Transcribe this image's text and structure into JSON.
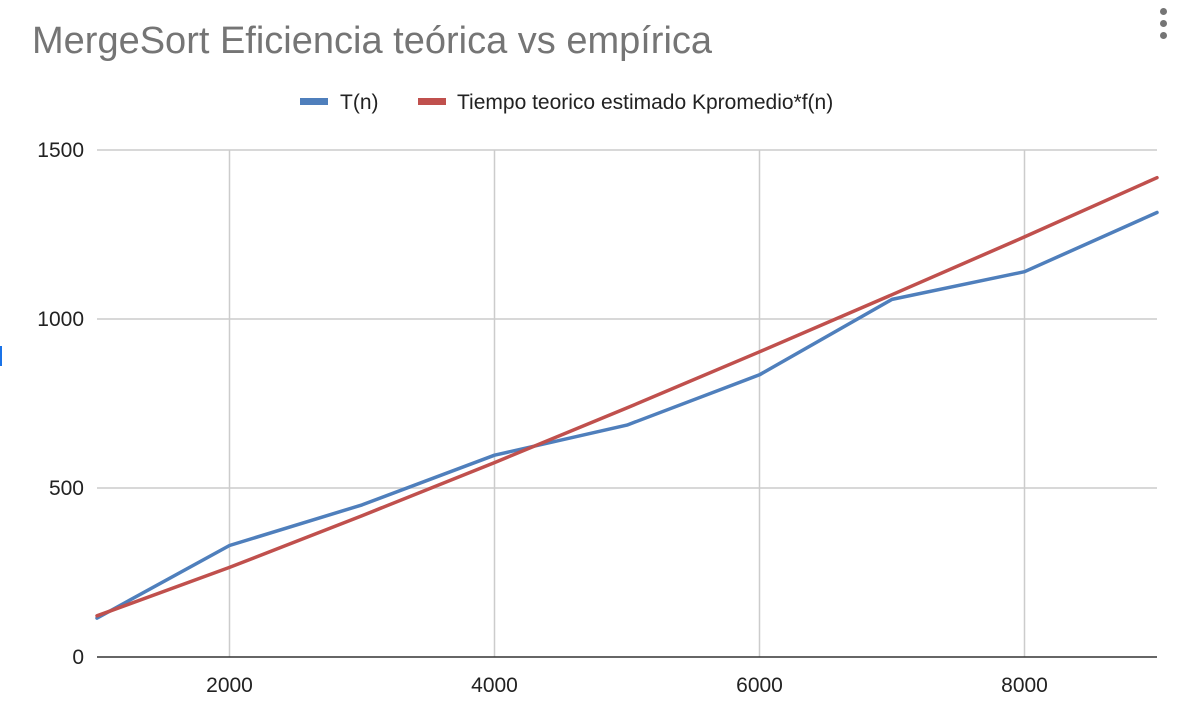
{
  "chart_data": {
    "type": "line",
    "title": "MergeSort Eficiencia teórica vs empírica",
    "xlabel": "",
    "ylabel": "",
    "xlim": [
      1000,
      9000
    ],
    "ylim": [
      0,
      1500
    ],
    "x_ticks": [
      2000,
      4000,
      6000,
      8000
    ],
    "y_ticks": [
      0,
      500,
      1000,
      1500
    ],
    "grid": true,
    "legend_position": "top",
    "x": [
      1000,
      2000,
      3000,
      4000,
      5000,
      6000,
      7000,
      8000,
      9000
    ],
    "series": [
      {
        "name": "T(n)",
        "color": "#4f7fbc",
        "values": [
          115,
          330,
          450,
          597,
          686,
          835,
          1058,
          1140,
          1315
        ]
      },
      {
        "name": "Tiempo teorico estimado Kpromedio*f(n)",
        "color": "#c0504d",
        "values": [
          122,
          265,
          418,
          575,
          737,
          903,
          1072,
          1243,
          1418
        ]
      }
    ]
  }
}
